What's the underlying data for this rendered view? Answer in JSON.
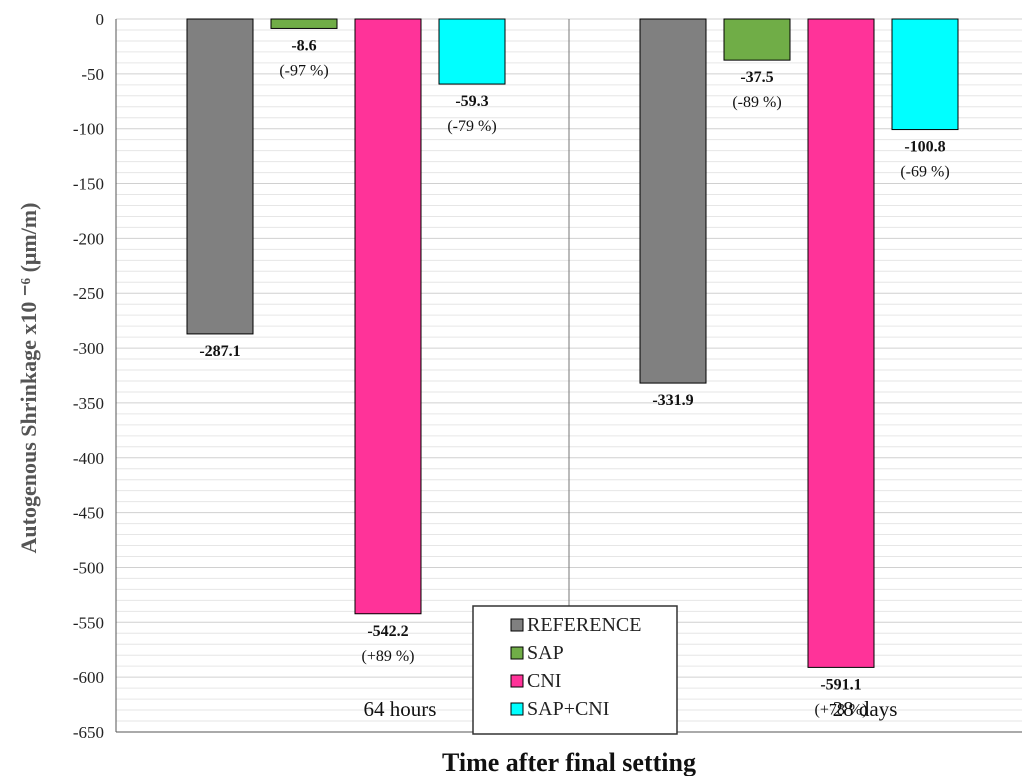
{
  "chart_data": {
    "type": "bar",
    "title": "",
    "xlabel": "Time after final setting",
    "ylabel": "Autogenous Shrinkage x10 ⁻⁶ (μm/m)",
    "ylim": [
      -650,
      0
    ],
    "yticks": [
      0,
      -50,
      -100,
      -150,
      -200,
      -250,
      -300,
      -350,
      -400,
      -450,
      -500,
      -550,
      -600,
      -650
    ],
    "grid": true,
    "legend_position": "bottom-center",
    "categories": [
      "64  hours",
      "28 days"
    ],
    "series": [
      {
        "name": "REFERENCE",
        "color": "#808080",
        "values": [
          -287.1,
          -331.9
        ],
        "labels": [
          "-287.1",
          "-331.9"
        ],
        "pct": [
          "",
          ""
        ]
      },
      {
        "name": "SAP",
        "color": "#70ad47",
        "values": [
          -8.6,
          -37.5
        ],
        "labels": [
          "-8.6",
          "-37.5"
        ],
        "pct": [
          "(-97 %)",
          "(-89 %)"
        ]
      },
      {
        "name": "CNI",
        "color": "#ff3399",
        "values": [
          -542.2,
          -591.1
        ],
        "labels": [
          "-542.2",
          "-591.1"
        ],
        "pct": [
          "(+89 %)",
          "(+78  %)"
        ]
      },
      {
        "name": "SAP+CNI",
        "color": "#00ffff",
        "values": [
          -59.3,
          -100.8
        ],
        "labels": [
          "-59.3",
          "-100.8"
        ],
        "pct": [
          "(-79 %)",
          "(-69 %)"
        ]
      }
    ]
  }
}
